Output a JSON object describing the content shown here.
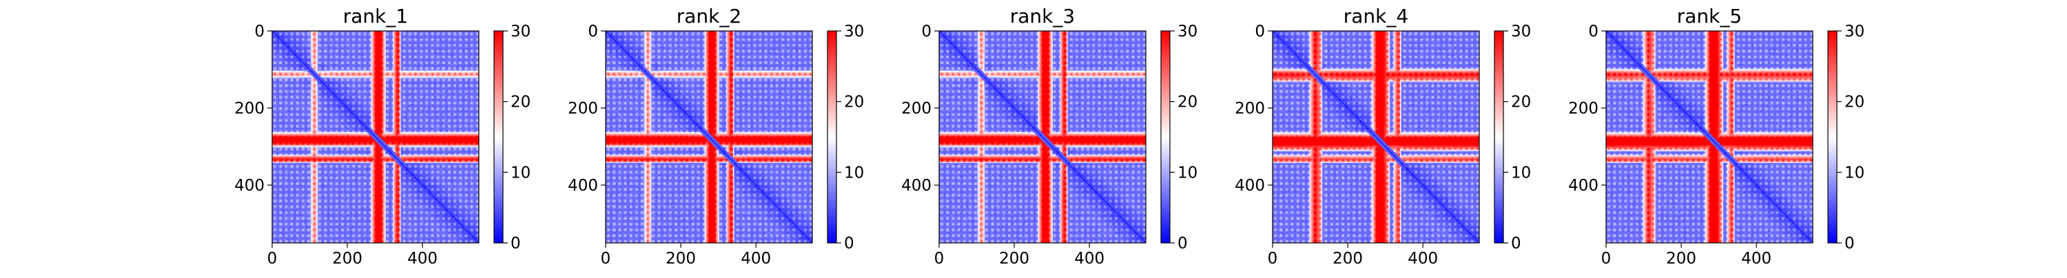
{
  "figure": {
    "background": "#ffffff",
    "colormap": {
      "name": "bwr",
      "low": "#0000ff",
      "mid": "#ffffff",
      "high": "#ff0000",
      "min": 0,
      "max": 30
    }
  },
  "chart_data": [
    {
      "type": "heatmap",
      "title": "rank_1",
      "xlabel": "",
      "ylabel": "",
      "xlim": [
        0,
        550
      ],
      "ylim": [
        550,
        0
      ],
      "xticks": [
        0,
        200,
        400
      ],
      "yticks": [
        0,
        200,
        400
      ],
      "colorbar": {
        "ticks": [
          0,
          10,
          20,
          30
        ],
        "range": [
          0,
          30
        ]
      },
      "n_residues": 550,
      "high_distance_bands": [
        {
          "range": [
            265,
            300
          ],
          "level": 0.95
        },
        {
          "range": [
            325,
            340
          ],
          "level": 0.8
        },
        {
          "range": [
            105,
            120
          ],
          "level": 0.5
        }
      ]
    },
    {
      "type": "heatmap",
      "title": "rank_2",
      "xlabel": "",
      "ylabel": "",
      "xlim": [
        0,
        550
      ],
      "ylim": [
        550,
        0
      ],
      "xticks": [
        0,
        200,
        400
      ],
      "yticks": [
        0,
        200,
        400
      ],
      "colorbar": {
        "ticks": [
          0,
          10,
          20,
          30
        ],
        "range": [
          0,
          30
        ]
      },
      "n_residues": 550,
      "high_distance_bands": [
        {
          "range": [
            265,
            300
          ],
          "level": 0.95
        },
        {
          "range": [
            325,
            340
          ],
          "level": 0.8
        },
        {
          "range": [
            105,
            120
          ],
          "level": 0.5
        }
      ]
    },
    {
      "type": "heatmap",
      "title": "rank_3",
      "xlabel": "",
      "ylabel": "",
      "xlim": [
        0,
        550
      ],
      "ylim": [
        550,
        0
      ],
      "xticks": [
        0,
        200,
        400
      ],
      "yticks": [
        0,
        200,
        400
      ],
      "colorbar": {
        "ticks": [
          0,
          10,
          20,
          30
        ],
        "range": [
          0,
          30
        ]
      },
      "n_residues": 550,
      "high_distance_bands": [
        {
          "range": [
            265,
            300
          ],
          "level": 0.95
        },
        {
          "range": [
            325,
            340
          ],
          "level": 0.8
        },
        {
          "range": [
            105,
            120
          ],
          "level": 0.5
        }
      ]
    },
    {
      "type": "heatmap",
      "title": "rank_4",
      "xlabel": "",
      "ylabel": "",
      "xlim": [
        0,
        550
      ],
      "ylim": [
        550,
        0
      ],
      "xticks": [
        0,
        200,
        400
      ],
      "yticks": [
        0,
        200,
        400
      ],
      "colorbar": {
        "ticks": [
          0,
          10,
          20,
          30
        ],
        "range": [
          0,
          30
        ]
      },
      "n_residues": 550,
      "high_distance_bands": [
        {
          "range": [
            265,
            310
          ],
          "level": 1.0
        },
        {
          "range": [
            325,
            340
          ],
          "level": 0.7
        },
        {
          "range": [
            100,
            130
          ],
          "level": 0.8
        }
      ]
    },
    {
      "type": "heatmap",
      "title": "rank_5",
      "xlabel": "",
      "ylabel": "",
      "xlim": [
        0,
        550
      ],
      "ylim": [
        550,
        0
      ],
      "xticks": [
        0,
        200,
        400
      ],
      "yticks": [
        0,
        200,
        400
      ],
      "colorbar": {
        "ticks": [
          0,
          10,
          20,
          30
        ],
        "range": [
          0,
          30
        ]
      },
      "n_residues": 550,
      "high_distance_bands": [
        {
          "range": [
            265,
            310
          ],
          "level": 1.0
        },
        {
          "range": [
            325,
            340
          ],
          "level": 0.7
        },
        {
          "range": [
            100,
            130
          ],
          "level": 0.75
        }
      ]
    }
  ]
}
